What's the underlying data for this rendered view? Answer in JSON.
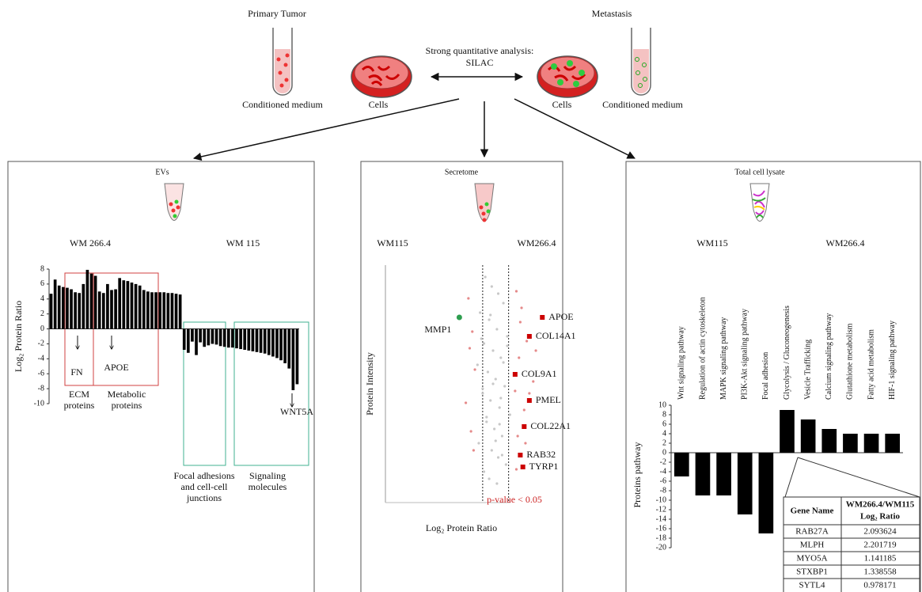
{
  "header": {
    "primary_tumor": "Primary Tumor",
    "metastasis": "Metastasis",
    "analysis": [
      "Strong quantitative analysis:",
      "SILAC"
    ],
    "left_labels": [
      "Conditioned medium",
      "Cells"
    ],
    "right_labels": [
      "Cells",
      "Conditioned medium"
    ]
  },
  "panels": [
    {
      "title": "EVs",
      "groups": [
        "WM 266.4",
        "WM 115"
      ]
    },
    {
      "title": "Secretome",
      "groups": [
        "WM115",
        "WM266.4"
      ]
    },
    {
      "title": "Total cell lysate",
      "groups": [
        "WM115",
        "WM266.4"
      ]
    }
  ],
  "chart_data": [
    {
      "type": "bar",
      "ylabel": "Log₂ Protein Ratio",
      "color": "#000000",
      "values": [
        4.7,
        6.6,
        5.8,
        5.6,
        5.5,
        5.3,
        4.9,
        4.8,
        6.0,
        7.9,
        7.4,
        7.1,
        5.0,
        4.8,
        6.0,
        5.2,
        5.3,
        6.8,
        6.5,
        6.4,
        6.2,
        6.0,
        5.8,
        5.2,
        5.0,
        4.9,
        4.9,
        4.9,
        4.9,
        4.8,
        4.8,
        4.7,
        4.6,
        -2.8,
        -3.2,
        -1.7,
        -3.5,
        -1.8,
        -2.4,
        -2.2,
        -2.0,
        -2.1,
        -2.3,
        -2.4,
        -2.5,
        -2.5,
        -2.6,
        -2.7,
        -2.8,
        -2.9,
        -3.0,
        -3.1,
        -3.2,
        -3.3,
        -3.5,
        -3.7,
        -3.9,
        -4.2,
        -4.6,
        -5.3,
        -8.2,
        -7.4
      ],
      "ylim": [
        -10,
        8
      ],
      "yticks": [
        -10,
        -8,
        -6,
        -4,
        -2,
        0,
        2,
        4,
        6,
        8
      ],
      "annotations": {
        "fn": "FN",
        "apoe": "APOE",
        "wnt5a": "WNT5A",
        "ecm": [
          "ECM",
          "proteins"
        ],
        "metabolic": [
          "Metabolic",
          "proteins"
        ],
        "focal": [
          "Focal adhesions",
          "and cell-cell",
          "junctions"
        ],
        "signaling": [
          "Signaling",
          "molecules"
        ]
      }
    },
    {
      "type": "scatter",
      "xlabel": "Log₂ Protein Ratio",
      "ylabel": "Protein Intensity",
      "xlim": [
        -8.5,
        4.5
      ],
      "ylim": [
        0,
        10
      ],
      "thresholds": [
        -1,
        1
      ],
      "threshold_label": "p-value < 0.05",
      "series": [
        {
          "color": "#c8c8c8",
          "x": [
            -0.8,
            -0.3,
            0.2,
            0.6,
            -1.2,
            -0.5,
            0.1,
            0.9,
            -0.9,
            -0.2,
            0.4,
            -1.4,
            -0.6,
            0.0,
            0.7,
            -1.0,
            -0.4,
            0.3,
            1.1,
            -0.7,
            -0.1,
            0.5,
            -1.3,
            -0.3,
            0.2,
            0.8,
            -0.9,
            -0.5,
            0.1,
            0.6,
            -1.1,
            -0.2,
            0.4,
            -0.7,
            0.0,
            0.9,
            -0.4,
            0.3,
            -1.0,
            0.5
          ],
          "y": [
            9.5,
            9.1,
            8.8,
            8.4,
            8.0,
            7.7,
            7.3,
            7.0,
            6.7,
            6.4,
            6.1,
            5.8,
            5.5,
            5.2,
            4.9,
            4.6,
            4.3,
            4.0,
            3.7,
            3.4,
            3.1,
            2.8,
            2.5,
            2.2,
            1.9,
            1.6,
            1.3,
            1.0,
            0.8,
            5.9,
            6.9,
            5.0,
            4.4,
            3.6,
            2.6,
            6.6,
            7.9,
            3.3,
            4.8,
            2.0
          ]
        },
        {
          "color": "#e58a8a",
          "x": [
            -2.1,
            -1.8,
            1.6,
            2.0,
            2.4,
            -1.6,
            1.8,
            2.9,
            -2.3,
            1.5,
            2.2,
            -1.9,
            1.7,
            3.1,
            -1.7,
            2.6,
            1.9,
            -2.0,
            2.3,
            1.6
          ],
          "y": [
            8.6,
            7.2,
            8.9,
            8.2,
            6.8,
            5.6,
            6.1,
            5.1,
            4.2,
            4.7,
            3.9,
            3.0,
            2.8,
            6.4,
            2.2,
            4.6,
            7.6,
            6.5,
            2.5,
            1.4
          ]
        },
        {
          "color": "#cc0000",
          "labels": [
            "APOE",
            "COL14A1",
            "COL9A1",
            "PMEL",
            "COL22A1",
            "RAB32",
            "TYRP1"
          ],
          "x": [
            3.6,
            2.6,
            1.5,
            2.6,
            2.2,
            1.9,
            2.1
          ],
          "y": [
            7.8,
            7.0,
            5.4,
            4.3,
            3.2,
            2.0,
            1.5
          ]
        },
        {
          "color": "#2e9e4f",
          "labels": [
            "MMP1"
          ],
          "x": [
            -2.8
          ],
          "y": [
            7.8
          ]
        }
      ]
    },
    {
      "type": "bar",
      "ylabel": "Proteins pathway",
      "color": "#000000",
      "categories": [
        "Wnt signaling pathway",
        "Regulation of actin cytoskeleton",
        "MAPK signaling pathway",
        "PI3K-Akt signaling pathway",
        "Focal adhesion",
        "Glycolysis / Gluconeogenesis",
        "Vesicle Trafficking",
        "Calcium signaling pathway",
        "Glutathione metabolism",
        "Fatty acid metabolism",
        "HIF-1 signaling pathway"
      ],
      "values": [
        -5,
        -9,
        -9,
        -13,
        -17,
        9,
        7,
        5,
        4,
        4,
        4
      ],
      "ylim": [
        -20,
        10
      ],
      "yticks": [
        -20,
        -18,
        -16,
        -14,
        -12,
        -10,
        -8,
        -6,
        -4,
        -2,
        0,
        2,
        4,
        6,
        8,
        10
      ]
    }
  ],
  "table": {
    "columns": [
      "Gene Name",
      [
        "WM266.4/WM115",
        "Log₂ Ratio"
      ]
    ],
    "rows": [
      [
        "RAB27A",
        "2.093624"
      ],
      [
        "MLPH",
        "2.201719"
      ],
      [
        "MYO5A",
        "1.141185"
      ],
      [
        "STXBP1",
        "1.338558"
      ],
      [
        "SYTL4",
        "0.978171"
      ]
    ]
  }
}
